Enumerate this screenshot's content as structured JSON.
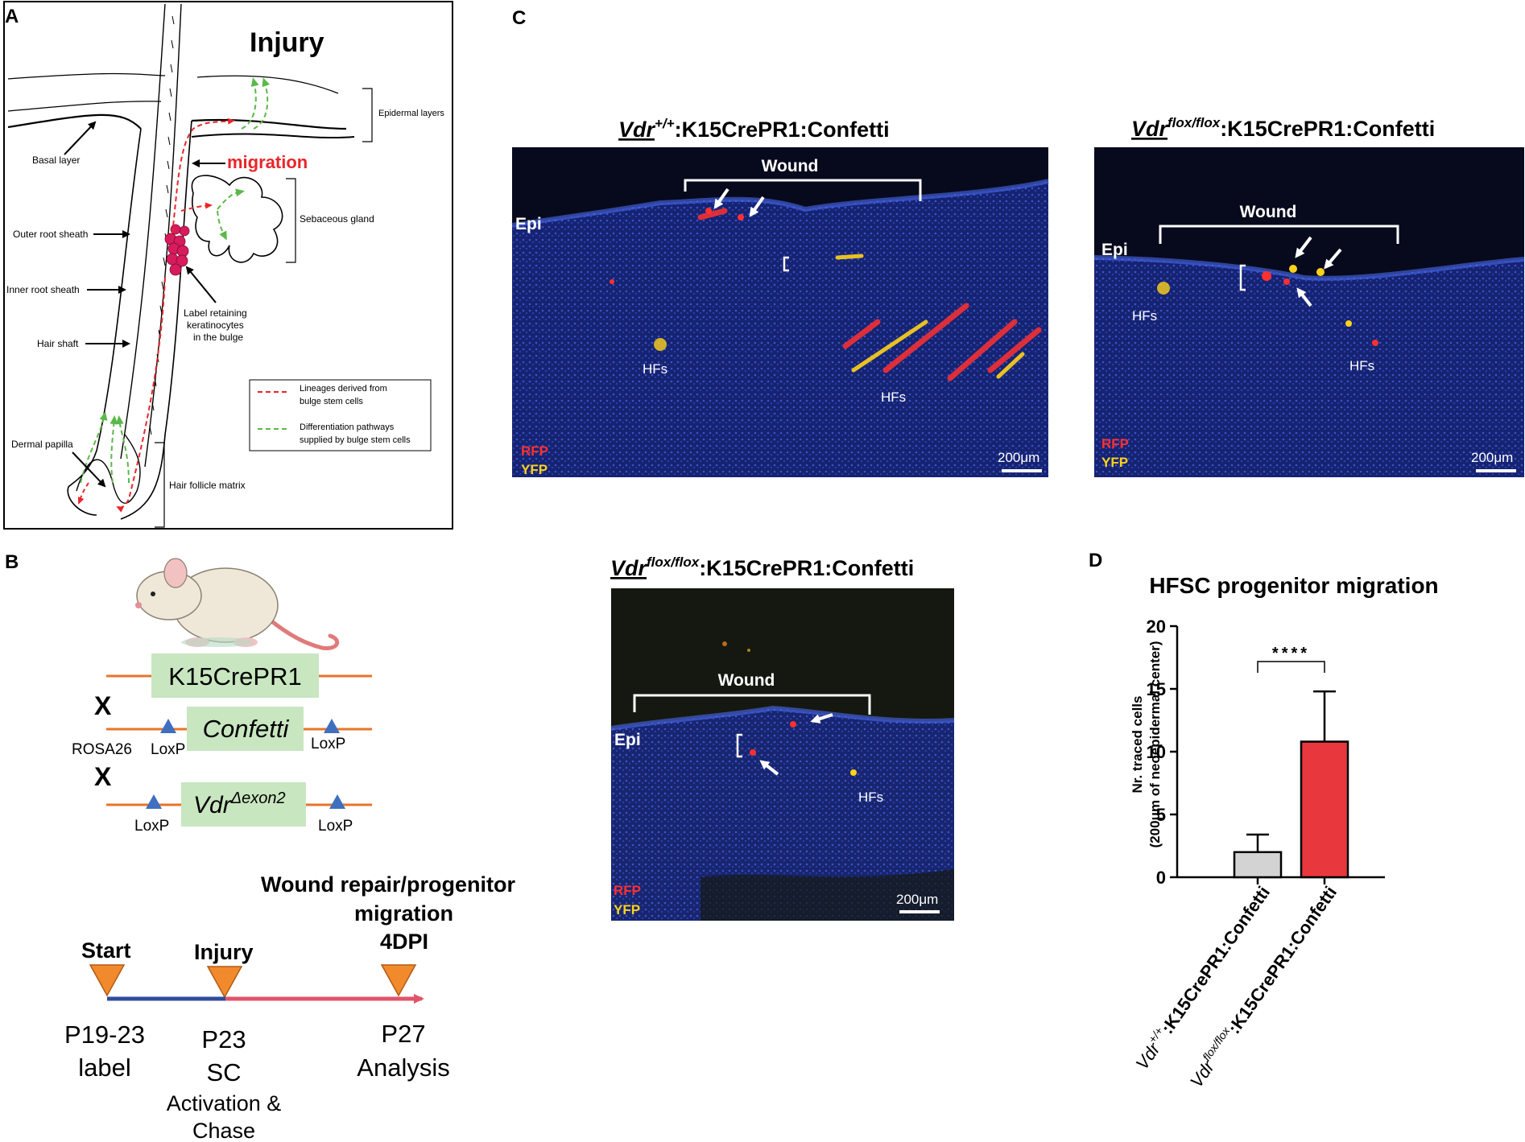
{
  "panels": {
    "a": "A",
    "b": "B",
    "c": "C",
    "d": "D"
  },
  "panel_a": {
    "title": "Injury",
    "migration": "migration",
    "epidermal_layers": "Epidermal layers",
    "basal_layer": "Basal layer",
    "sebaceous_gland": "Sebaceous gland",
    "outer_root_sheath": "Outer root sheath",
    "inner_root_sheath": "Inner root sheath",
    "hair_shaft": "Hair shaft",
    "label_retaining_1": "Label retaining",
    "label_retaining_2": "keratinocytes",
    "label_retaining_3": "in the bulge",
    "legend_red_1": "Lineages derived from",
    "legend_red_2": "bulge stem cells",
    "legend_green_1": "Differentiation pathways",
    "legend_green_2": "supplied by bulge stem cells",
    "dermal_papilla": "Dermal papilla",
    "hair_follicle_matrix": "Hair follicle matrix",
    "colors": {
      "red": "#e8262a",
      "green": "#5cb84a",
      "cell": "#d81b5c"
    }
  },
  "panel_b": {
    "k15": "K15CrePR1",
    "cross1": "X",
    "confetti": "Confetti",
    "rosa26": "ROSA26",
    "loxp": "LoxP",
    "cross2": "X",
    "vdr": "Vdr",
    "vdr_sup": "Δexon2",
    "timeline_title_1": "Wound repair/progenitor",
    "timeline_title_2": "migration",
    "timeline_title_3": "4DPI",
    "start": "Start",
    "injury": "Injury",
    "p19": "P19-23",
    "label": "label",
    "p23": "P23",
    "sc": "SC",
    "activation": "Activation &",
    "chase": "Chase",
    "p27": "P27",
    "analysis": "Analysis",
    "colors": {
      "line": "#e8742a",
      "box": "#c8e6c0",
      "triangle": "#3f6fbf",
      "marker": "#f08a2c",
      "blue": "#2f4d9e",
      "pink": "#e0546a"
    }
  },
  "panel_c": {
    "img1_title_vdr": "Vdr",
    "img1_title_sup": "+/+",
    "img1_title_rest": ":K15CrePR1:Confetti",
    "img2_title_vdr": "Vdr",
    "img2_title_sup": "flox/flox",
    "img2_title_rest": ":K15CrePR1:Confetti",
    "img3_title_vdr": "Vdr",
    "img3_title_sup": "flox/flox",
    "img3_title_rest": ":K15CrePR1:Confetti",
    "wound": "Wound",
    "epi": "Epi",
    "hfs": "HFs",
    "rfp": "RFP",
    "yfp": "YFP",
    "scale": "200μm",
    "colors": {
      "bg": "#0a0e22",
      "tissue": "#1c2f8f",
      "rfp": "#ff3030",
      "yfp": "#ffd21a"
    }
  },
  "panel_d": {
    "title": "HFSC progenitor migration",
    "significance": "****",
    "cat1_vdr": "Vdr",
    "cat1_sup": "+/+",
    "cat1_rest": ":K15CrePR1:Confetti",
    "cat2_vdr": "Vdr",
    "cat2_sup": "flox/flox",
    "cat2_rest": ":K15CrePR1:Confetti"
  },
  "chart_data": {
    "type": "bar",
    "title": "HFSC progenitor migration",
    "ylabel_1": "Nr. traced cells",
    "ylabel_2": "(200μm of neoepidermal center)",
    "categories": [
      "Vdr+/+:K15CrePR1:Confetti",
      "Vdrflox/flox:K15CrePR1:Confetti"
    ],
    "values": [
      2.0,
      10.8
    ],
    "errors": [
      1.4,
      4.0
    ],
    "colors": [
      "#d3d3d3",
      "#e8383d"
    ],
    "ylim": [
      0,
      20
    ],
    "yticks": [
      "0",
      "5",
      "10",
      "15",
      "20"
    ],
    "annotation": "****"
  }
}
